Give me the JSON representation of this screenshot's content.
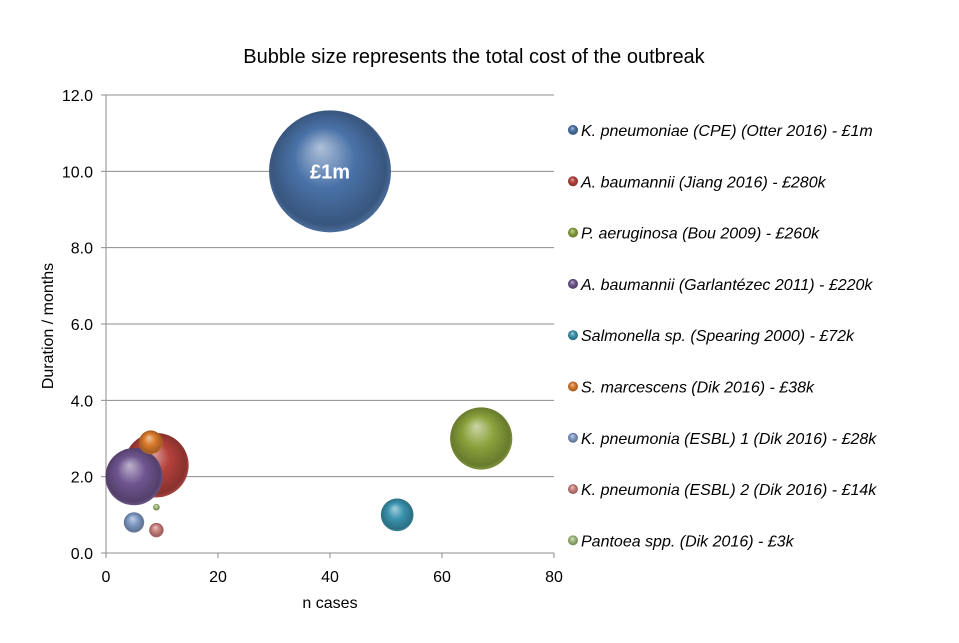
{
  "chart_data": {
    "type": "bubble",
    "title": "Bubble size represents the total cost of the outbreak",
    "xlabel": "n cases",
    "ylabel": "Duration / months",
    "xlim": [
      0,
      80
    ],
    "ylim": [
      0,
      12
    ],
    "xticks": [
      "0",
      "20",
      "40",
      "60",
      "80"
    ],
    "yticks": [
      "0.0",
      "2.0",
      "4.0",
      "6.0",
      "8.0",
      "10.0",
      "12.0"
    ],
    "xtick_values": [
      0,
      20,
      40,
      60,
      80
    ],
    "ytick_values": [
      0,
      2,
      4,
      6,
      8,
      10,
      12
    ],
    "grid": "horizontal",
    "legend_position": "right",
    "size_unit": "£k",
    "series": [
      {
        "name": "K. pneumoniae (CPE) (Otter 2016) - £1m",
        "x": 40,
        "y": 10.0,
        "cost_k": 1000,
        "color": "#4a72a8",
        "data_label": "£1m"
      },
      {
        "name": "A. baumannii (Jiang 2016) - £280k",
        "x": 9,
        "y": 2.3,
        "cost_k": 280,
        "color": "#b5413c"
      },
      {
        "name": "P. aeruginosa (Bou 2009) - £260k",
        "x": 67,
        "y": 3.0,
        "cost_k": 260,
        "color": "#8aa23c"
      },
      {
        "name": "A. baumannii (Garlantézec 2011) - £220k",
        "x": 5,
        "y": 2.0,
        "cost_k": 220,
        "color": "#6e558f"
      },
      {
        "name": "Salmonella sp. (Spearing 2000) - £72k",
        "x": 52,
        "y": 1.0,
        "cost_k": 72,
        "color": "#3a93ae"
      },
      {
        "name": "S. marcescens (Dik 2016) - £38k",
        "x": 8,
        "y": 2.9,
        "cost_k": 38,
        "color": "#d9792a"
      },
      {
        "name": "K. pneumonia (ESBL) 1 (Dik 2016) - £28k",
        "x": 5,
        "y": 0.8,
        "cost_k": 28,
        "color": "#7f99c4"
      },
      {
        "name": "K. pneumonia (ESBL) 2 (Dik 2016) - £14k",
        "x": 9,
        "y": 0.6,
        "cost_k": 14,
        "color": "#c97f7c"
      },
      {
        "name": "Pantoea spp. (Dik 2016) - £3k",
        "x": 9,
        "y": 1.2,
        "cost_k": 3,
        "color": "#9fb97a"
      }
    ]
  }
}
